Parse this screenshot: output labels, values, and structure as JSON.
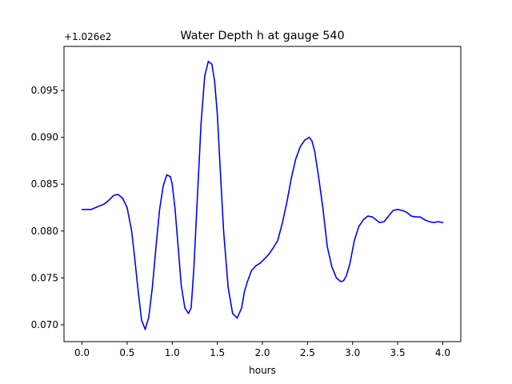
{
  "chart_data": {
    "type": "line",
    "title": "Water Depth h at gauge 540",
    "xlabel": "hours",
    "ylabel": "",
    "offset_label": "+1.026e2",
    "xlim": [
      -0.2,
      4.2
    ],
    "ylim": [
      0.0682,
      0.0997
    ],
    "xticks": [
      0.0,
      0.5,
      1.0,
      1.5,
      2.0,
      2.5,
      3.0,
      3.5,
      4.0
    ],
    "xtick_labels": [
      "0.0",
      "0.5",
      "1.0",
      "1.5",
      "2.0",
      "2.5",
      "3.0",
      "3.5",
      "4.0"
    ],
    "yticks": [
      0.07,
      0.075,
      0.08,
      0.085,
      0.09,
      0.095
    ],
    "ytick_labels": [
      "0.070",
      "0.075",
      "0.080",
      "0.085",
      "0.090",
      "0.095"
    ],
    "grid": false,
    "legend": "none",
    "series": [
      {
        "color": "#0000ff",
        "x": [
          0.0,
          0.05,
          0.1,
          0.15,
          0.2,
          0.25,
          0.3,
          0.35,
          0.4,
          0.45,
          0.5,
          0.55,
          0.58,
          0.62,
          0.66,
          0.7,
          0.74,
          0.78,
          0.82,
          0.86,
          0.9,
          0.94,
          0.98,
          1.0,
          1.03,
          1.06,
          1.1,
          1.14,
          1.18,
          1.21,
          1.24,
          1.28,
          1.32,
          1.36,
          1.4,
          1.44,
          1.47,
          1.5,
          1.53,
          1.57,
          1.62,
          1.67,
          1.72,
          1.77,
          1.8,
          1.83,
          1.88,
          1.93,
          1.98,
          2.02,
          2.07,
          2.12,
          2.17,
          2.22,
          2.27,
          2.32,
          2.37,
          2.42,
          2.47,
          2.52,
          2.55,
          2.58,
          2.62,
          2.67,
          2.72,
          2.77,
          2.82,
          2.87,
          2.9,
          2.93,
          2.97,
          3.02,
          3.07,
          3.12,
          3.17,
          3.22,
          3.26,
          3.3,
          3.35,
          3.4,
          3.45,
          3.5,
          3.55,
          3.6,
          3.65,
          3.7,
          3.75,
          3.8,
          3.85,
          3.9,
          3.95,
          4.0
        ],
        "y": [
          0.0823,
          0.0823,
          0.0823,
          0.0825,
          0.0827,
          0.0829,
          0.0833,
          0.0838,
          0.0839,
          0.0835,
          0.0825,
          0.08,
          0.0775,
          0.0738,
          0.0705,
          0.0695,
          0.0708,
          0.074,
          0.0783,
          0.0823,
          0.0848,
          0.086,
          0.0858,
          0.085,
          0.0825,
          0.079,
          0.0742,
          0.0718,
          0.0712,
          0.0718,
          0.076,
          0.0838,
          0.0915,
          0.0965,
          0.0981,
          0.0978,
          0.096,
          0.0925,
          0.087,
          0.08,
          0.074,
          0.0712,
          0.0707,
          0.0718,
          0.0735,
          0.0745,
          0.0758,
          0.0763,
          0.0766,
          0.077,
          0.0775,
          0.0782,
          0.079,
          0.0808,
          0.083,
          0.0856,
          0.0877,
          0.089,
          0.0897,
          0.09,
          0.0896,
          0.0885,
          0.086,
          0.0825,
          0.0783,
          0.0762,
          0.075,
          0.0746,
          0.0747,
          0.0752,
          0.0765,
          0.079,
          0.0805,
          0.0812,
          0.0816,
          0.0815,
          0.0812,
          0.0809,
          0.081,
          0.0816,
          0.0822,
          0.0823,
          0.0822,
          0.082,
          0.0816,
          0.0815,
          0.0815,
          0.0812,
          0.081,
          0.0809,
          0.081,
          0.0809
        ]
      }
    ]
  }
}
